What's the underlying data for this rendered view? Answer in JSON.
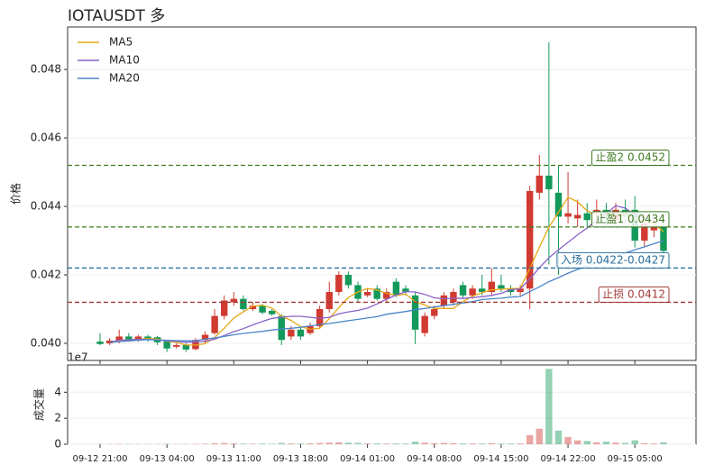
{
  "chart_data": {
    "type": "candlestick",
    "title": "IOTAUSDT  多",
    "ylabel": "价格",
    "volume_label": "成交量",
    "volume_offset_label": "1e7",
    "xticks": [
      {
        "value": 0,
        "label": "09-12 21:00"
      },
      {
        "value": 7,
        "label": "09-13 04:00"
      },
      {
        "value": 14,
        "label": "09-13 11:00"
      },
      {
        "value": 21,
        "label": "09-13 18:00"
      },
      {
        "value": 28,
        "label": "09-14 01:00"
      },
      {
        "value": 35,
        "label": "09-14 08:00"
      },
      {
        "value": 42,
        "label": "09-14 15:00"
      },
      {
        "value": 49,
        "label": "09-14 22:00"
      },
      {
        "value": 56,
        "label": "09-15 05:00"
      }
    ],
    "xlim": [
      -3.4,
      62.4
    ],
    "ylim": [
      0.0395,
      0.04924
    ],
    "yticks": [
      {
        "value": 0.04,
        "label": "0.040"
      },
      0.042,
      0.044,
      0.046,
      0.048
    ],
    "vlim": [
      0,
      6.1
    ],
    "vticks": [
      0,
      2,
      4
    ],
    "grid": true,
    "up_color": "#d03a31",
    "down_color": "#13995a",
    "open": [
      0.04005,
      0.04,
      0.04008,
      0.0402,
      0.04012,
      0.0402,
      0.04018,
      0.04005,
      0.0399,
      0.03995,
      0.03983,
      0.0401,
      0.0403,
      0.0408,
      0.0412,
      0.0413,
      0.041,
      0.0411,
      0.04095,
      0.0408,
      0.0402,
      0.0404,
      0.0403,
      0.0405,
      0.041,
      0.0415,
      0.042,
      0.0417,
      0.0414,
      0.0416,
      0.0413,
      0.0418,
      0.0416,
      0.0414,
      0.0403,
      0.0408,
      0.0411,
      0.0412,
      0.0417,
      0.0414,
      0.0416,
      0.0415,
      0.0417,
      0.0416,
      0.0415,
      0.0416,
      0.0444,
      0.0449,
      0.0444,
      0.0437,
      0.04365,
      0.0438,
      0.0438,
      0.0439,
      0.0436,
      0.0439,
      0.0439,
      0.043,
      0.0433,
      0.0434
    ],
    "high": [
      0.0403,
      0.04015,
      0.0404,
      0.0403,
      0.04025,
      0.04025,
      0.04022,
      0.0401,
      0.04,
      0.04,
      0.04015,
      0.04035,
      0.041,
      0.0414,
      0.0415,
      0.0414,
      0.0412,
      0.04115,
      0.041,
      0.04085,
      0.0405,
      0.04045,
      0.0406,
      0.0411,
      0.0418,
      0.0421,
      0.0421,
      0.0418,
      0.0416,
      0.0417,
      0.0416,
      0.0419,
      0.0417,
      0.0415,
      0.0409,
      0.0411,
      0.0415,
      0.0416,
      0.0418,
      0.0417,
      0.042,
      0.0422,
      0.042,
      0.0417,
      0.0417,
      0.0446,
      0.0455,
      0.0488,
      0.0452,
      0.045,
      0.0442,
      0.0441,
      0.0442,
      0.0441,
      0.0441,
      0.0442,
      0.0443,
      0.0438,
      0.0436,
      0.0436
    ],
    "low": [
      0.03995,
      0.03995,
      0.04,
      0.04005,
      0.04005,
      0.04005,
      0.03995,
      0.03975,
      0.03985,
      0.03975,
      0.0398,
      0.04,
      0.04025,
      0.0407,
      0.0411,
      0.04095,
      0.04095,
      0.04085,
      0.0408,
      0.03995,
      0.0401,
      0.0401,
      0.04025,
      0.04045,
      0.0409,
      0.0414,
      0.0416,
      0.0412,
      0.04135,
      0.04125,
      0.0412,
      0.04135,
      0.0414,
      0.03998,
      0.0402,
      0.0407,
      0.041,
      0.0411,
      0.0413,
      0.0413,
      0.0414,
      0.0414,
      0.0415,
      0.0414,
      0.0414,
      0.041,
      0.0442,
      0.0423,
      0.042,
      0.0435,
      0.0434,
      0.0434,
      0.0435,
      0.0434,
      0.0434,
      0.0435,
      0.0428,
      0.0428,
      0.0431,
      0.0426
    ],
    "close": [
      0.03998,
      0.04008,
      0.0402,
      0.04012,
      0.0402,
      0.0401,
      0.04003,
      0.03985,
      0.03995,
      0.03982,
      0.0401,
      0.04025,
      0.0408,
      0.04125,
      0.0413,
      0.041,
      0.0411,
      0.0409,
      0.04085,
      0.0401,
      0.0404,
      0.0402,
      0.0405,
      0.041,
      0.0415,
      0.042,
      0.0417,
      0.0413,
      0.0415,
      0.0413,
      0.0415,
      0.0414,
      0.0415,
      0.0404,
      0.0408,
      0.041,
      0.0414,
      0.0415,
      0.0414,
      0.0416,
      0.0415,
      0.0418,
      0.0416,
      0.0415,
      0.0416,
      0.04445,
      0.0449,
      0.0445,
      0.0437,
      0.0438,
      0.04375,
      0.0436,
      0.0439,
      0.0437,
      0.0439,
      0.0437,
      0.043,
      0.0435,
      0.0434,
      0.0427
    ],
    "volume": [
      0.02,
      0.02,
      0.03,
      0.02,
      0.02,
      0.02,
      0.02,
      0.03,
      0.02,
      0.02,
      0.03,
      0.04,
      0.08,
      0.1,
      0.06,
      0.05,
      0.04,
      0.05,
      0.04,
      0.1,
      0.06,
      0.05,
      0.07,
      0.1,
      0.12,
      0.15,
      0.12,
      0.1,
      0.06,
      0.06,
      0.05,
      0.06,
      0.05,
      0.2,
      0.12,
      0.08,
      0.1,
      0.08,
      0.06,
      0.06,
      0.05,
      0.08,
      0.05,
      0.05,
      0.06,
      0.7,
      1.2,
      5.8,
      1.05,
      0.55,
      0.3,
      0.25,
      0.15,
      0.2,
      0.12,
      0.1,
      0.3,
      0.08,
      0.06,
      0.15
    ],
    "series": [
      {
        "name": "MA5",
        "color": "#e6a817",
        "values": [
          null,
          0.04003,
          0.04009,
          0.0401,
          0.04012,
          0.04014,
          0.04013,
          0.04006,
          0.04003,
          0.03995,
          0.03995,
          0.03999,
          0.04017,
          0.04044,
          0.04074,
          0.04092,
          0.04109,
          0.04111,
          0.04103,
          0.04079,
          0.04067,
          0.04049,
          0.04041,
          0.04044,
          0.04072,
          0.04104,
          0.04134,
          0.0415,
          0.0416,
          0.04156,
          0.04146,
          0.0414,
          0.04144,
          0.04122,
          0.04112,
          0.04102,
          0.04102,
          0.04102,
          0.04122,
          0.04138,
          0.04148,
          0.04156,
          0.04158,
          0.0416,
          0.0416,
          0.04219,
          0.04281,
          0.04339,
          0.04383,
          0.04427,
          0.04413,
          0.04387,
          0.04375,
          0.04375,
          0.04377,
          0.04377,
          0.04364,
          0.04356,
          0.0435,
          0.04326
        ]
      },
      {
        "name": "MA10",
        "color": "#8a62c8",
        "values": [
          null,
          0.04003,
          0.04009,
          0.0401,
          0.04012,
          0.04011,
          0.0401,
          0.04007,
          0.04006,
          0.04003,
          0.04004,
          0.04006,
          0.04012,
          0.04023,
          0.04034,
          0.04043,
          0.04054,
          0.04064,
          0.04073,
          0.04076,
          0.04079,
          0.04079,
          0.04076,
          0.04073,
          0.04076,
          0.04086,
          0.04092,
          0.04096,
          0.04103,
          0.04115,
          0.04129,
          0.04141,
          0.04151,
          0.0415,
          0.04143,
          0.04133,
          0.0413,
          0.04132,
          0.04131,
          0.04134,
          0.04136,
          0.0414,
          0.04146,
          0.04157,
          0.04159,
          0.04188,
          0.04221,
          0.0425,
          0.04273,
          0.04295,
          0.04317,
          0.04337,
          0.0436,
          0.04379,
          0.04402,
          0.04395,
          0.04376,
          0.04366,
          0.04363,
          0.04352
        ]
      },
      {
        "name": "MA20",
        "color": "#4a86c8",
        "values": [
          null,
          0.04003,
          0.04005,
          0.04007,
          0.04009,
          0.04011,
          0.0401,
          0.04009,
          0.04008,
          0.04007,
          0.04008,
          0.04012,
          0.04016,
          0.0402,
          0.04025,
          0.04029,
          0.04032,
          0.04035,
          0.04039,
          0.04042,
          0.04044,
          0.04047,
          0.04051,
          0.04055,
          0.04058,
          0.04062,
          0.04066,
          0.0407,
          0.04074,
          0.04078,
          0.04085,
          0.04089,
          0.04093,
          0.04098,
          0.04102,
          0.04106,
          0.0411,
          0.04114,
          0.04118,
          0.04122,
          0.04128,
          0.0413,
          0.04132,
          0.04135,
          0.04137,
          0.04151,
          0.04165,
          0.0418,
          0.04192,
          0.04205,
          0.04216,
          0.04226,
          0.04236,
          0.04246,
          0.04255,
          0.04264,
          0.04273,
          0.04282,
          0.04291,
          0.043
        ]
      }
    ],
    "levels": [
      {
        "label": "止盈2 0.0452",
        "value": 0.0452,
        "color": "#3d7a22"
      },
      {
        "label": "止盈1 0.0434",
        "value": 0.0434,
        "color": "#3d7a22"
      },
      {
        "label": "入场 0.0422-0.0427",
        "value": 0.0422,
        "color": "#2a6f9e"
      },
      {
        "label": "止损 0.0412",
        "value": 0.0412,
        "color": "#a33a36"
      }
    ]
  }
}
